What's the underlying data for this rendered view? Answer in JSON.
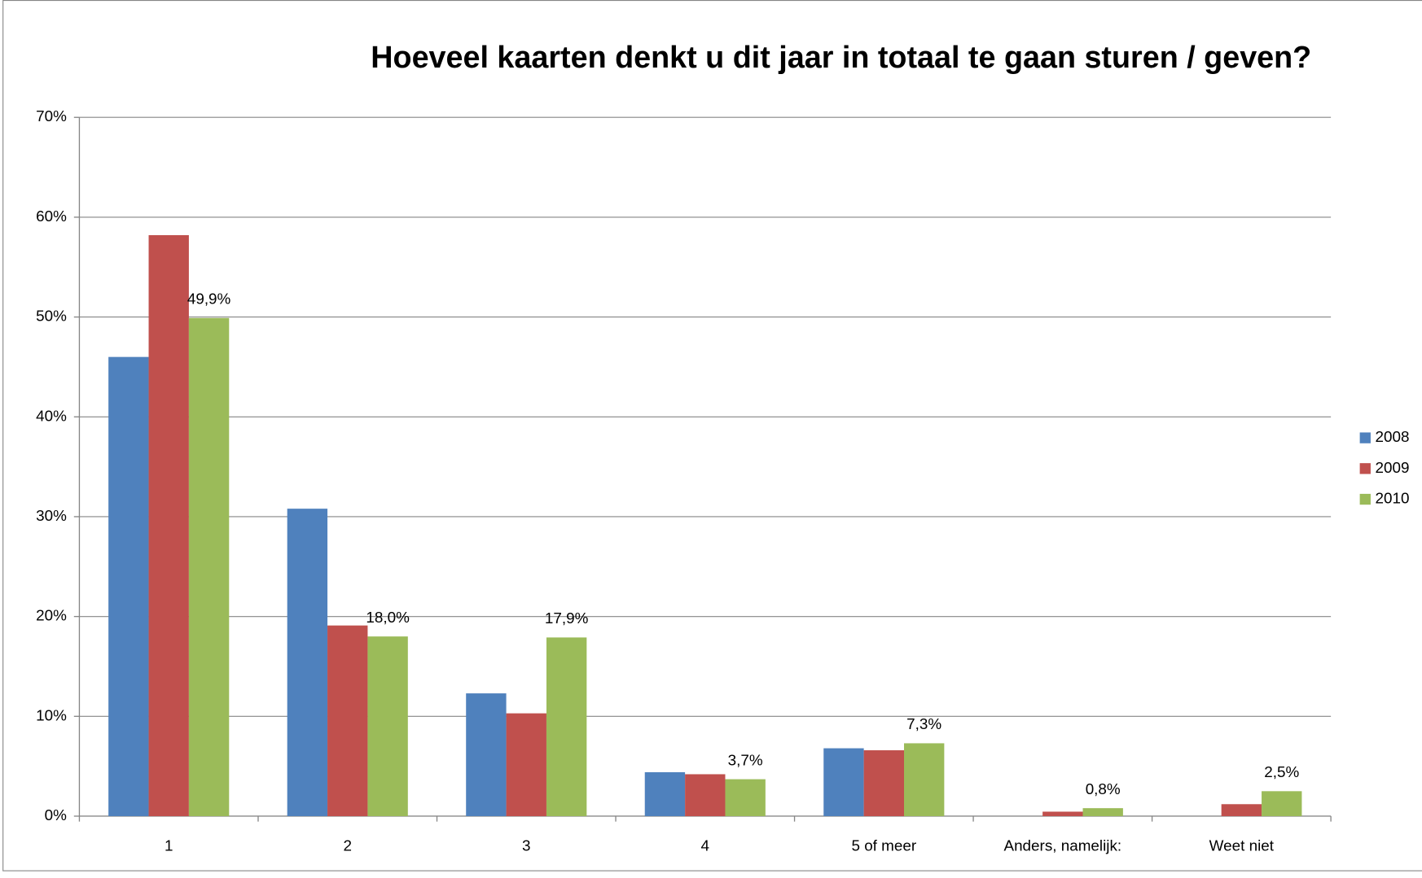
{
  "chart_data": {
    "type": "bar",
    "title": "Hoeveel kaarten denkt u dit jaar in totaal te gaan sturen / geven?",
    "categories": [
      "1",
      "2",
      "3",
      "4",
      "5 of meer",
      "Anders, namelijk:",
      "Weet niet"
    ],
    "series": [
      {
        "name": "2008",
        "color": "#4f81bd",
        "values": [
          46,
          30.8,
          12.3,
          4.4,
          6.8,
          0,
          0
        ]
      },
      {
        "name": "2009",
        "color": "#c0504d",
        "values": [
          58.2,
          19.1,
          10.3,
          4.2,
          6.6,
          0.45,
          1.2
        ]
      },
      {
        "name": "2010",
        "color": "#9bbb59",
        "values": [
          49.9,
          18.0,
          17.9,
          3.7,
          7.3,
          0.8,
          2.5
        ],
        "value_labels": [
          "49,9%",
          "18,0%",
          "17,9%",
          "3,7%",
          "7,3%",
          "0,8%",
          "2,5%"
        ]
      }
    ],
    "ylim": [
      0,
      70
    ],
    "yticks": [
      {
        "value": 0,
        "label": "0%"
      },
      {
        "value": 10,
        "label": "10%"
      },
      {
        "value": 20,
        "label": "20%"
      },
      {
        "value": 30,
        "label": "30%"
      },
      {
        "value": 40,
        "label": "40%"
      },
      {
        "value": 50,
        "label": "50%"
      },
      {
        "value": 60,
        "label": "60%"
      },
      {
        "value": 70,
        "label": "70%"
      }
    ],
    "grid": true,
    "legend": "right"
  }
}
